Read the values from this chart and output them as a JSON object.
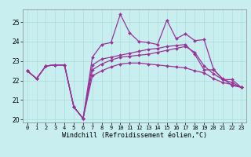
{
  "x": [
    0,
    1,
    2,
    3,
    4,
    5,
    6,
    7,
    8,
    9,
    10,
    11,
    12,
    13,
    14,
    15,
    16,
    17,
    18,
    19,
    20,
    21,
    22,
    23
  ],
  "line1": [
    22.5,
    22.1,
    22.75,
    22.8,
    22.8,
    20.65,
    20.05,
    22.8,
    23.1,
    23.2,
    23.3,
    23.4,
    23.5,
    23.6,
    23.65,
    23.75,
    23.8,
    23.85,
    23.35,
    22.55,
    22.55,
    22.1,
    21.75,
    21.65
  ],
  "line2": [
    22.5,
    22.1,
    22.75,
    22.8,
    22.8,
    20.65,
    20.05,
    23.2,
    23.85,
    23.95,
    25.4,
    24.45,
    24.0,
    23.95,
    23.85,
    25.1,
    24.15,
    24.4,
    24.05,
    24.1,
    22.6,
    22.05,
    22.05,
    21.65
  ],
  "line3": [
    22.5,
    22.1,
    22.75,
    22.8,
    22.8,
    20.65,
    20.05,
    22.55,
    22.85,
    23.05,
    23.2,
    23.25,
    23.3,
    23.35,
    23.45,
    23.55,
    23.65,
    23.75,
    23.45,
    22.75,
    22.35,
    22.05,
    21.9,
    21.65
  ],
  "line4": [
    22.5,
    22.1,
    22.75,
    22.8,
    22.8,
    20.65,
    20.05,
    22.25,
    22.5,
    22.7,
    22.85,
    22.9,
    22.9,
    22.85,
    22.8,
    22.75,
    22.7,
    22.65,
    22.5,
    22.4,
    22.1,
    21.9,
    21.8,
    21.65
  ],
  "color": "#993399",
  "bg_color": "#c8eef0",
  "xlabel": "Windchill (Refroidissement éolien,°C)",
  "xlim_min": -0.5,
  "xlim_max": 23.5,
  "ylim_min": 19.85,
  "ylim_max": 25.65,
  "yticks": [
    20,
    21,
    22,
    23,
    24,
    25
  ],
  "xticks": [
    0,
    1,
    2,
    3,
    4,
    5,
    6,
    7,
    8,
    9,
    10,
    11,
    12,
    13,
    14,
    15,
    16,
    17,
    18,
    19,
    20,
    21,
    22,
    23
  ],
  "marker": "D",
  "markersize": 2.0,
  "linewidth": 0.9,
  "xlabel_fontsize": 6.0,
  "tick_fontsize": 5.0,
  "grid_color": "#aadddd",
  "grid_lw": 0.5
}
